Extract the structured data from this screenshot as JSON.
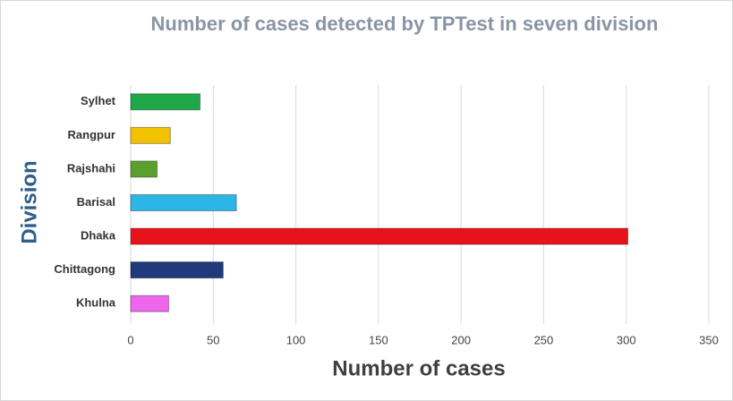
{
  "chart_data": {
    "type": "bar",
    "orientation": "horizontal",
    "title": "Number of cases detected by TPTest in seven division",
    "x_label": "Number of cases",
    "y_label": "Division",
    "categories": [
      "Sylhet",
      "Rangpur",
      "Rajshahi",
      "Barisal",
      "Dhaka",
      "Chittagong",
      "Khulna"
    ],
    "values": [
      42,
      24,
      16,
      64,
      301,
      56,
      23
    ],
    "colors": [
      "#1fa84a",
      "#f2c200",
      "#5aa02c",
      "#2bb6e8",
      "#e8121a",
      "#1f3a7a",
      "#ee66ee"
    ],
    "xlim": [
      0,
      350
    ],
    "xticks": [
      0,
      50,
      100,
      150,
      200,
      250,
      300,
      350
    ],
    "grid": true
  }
}
